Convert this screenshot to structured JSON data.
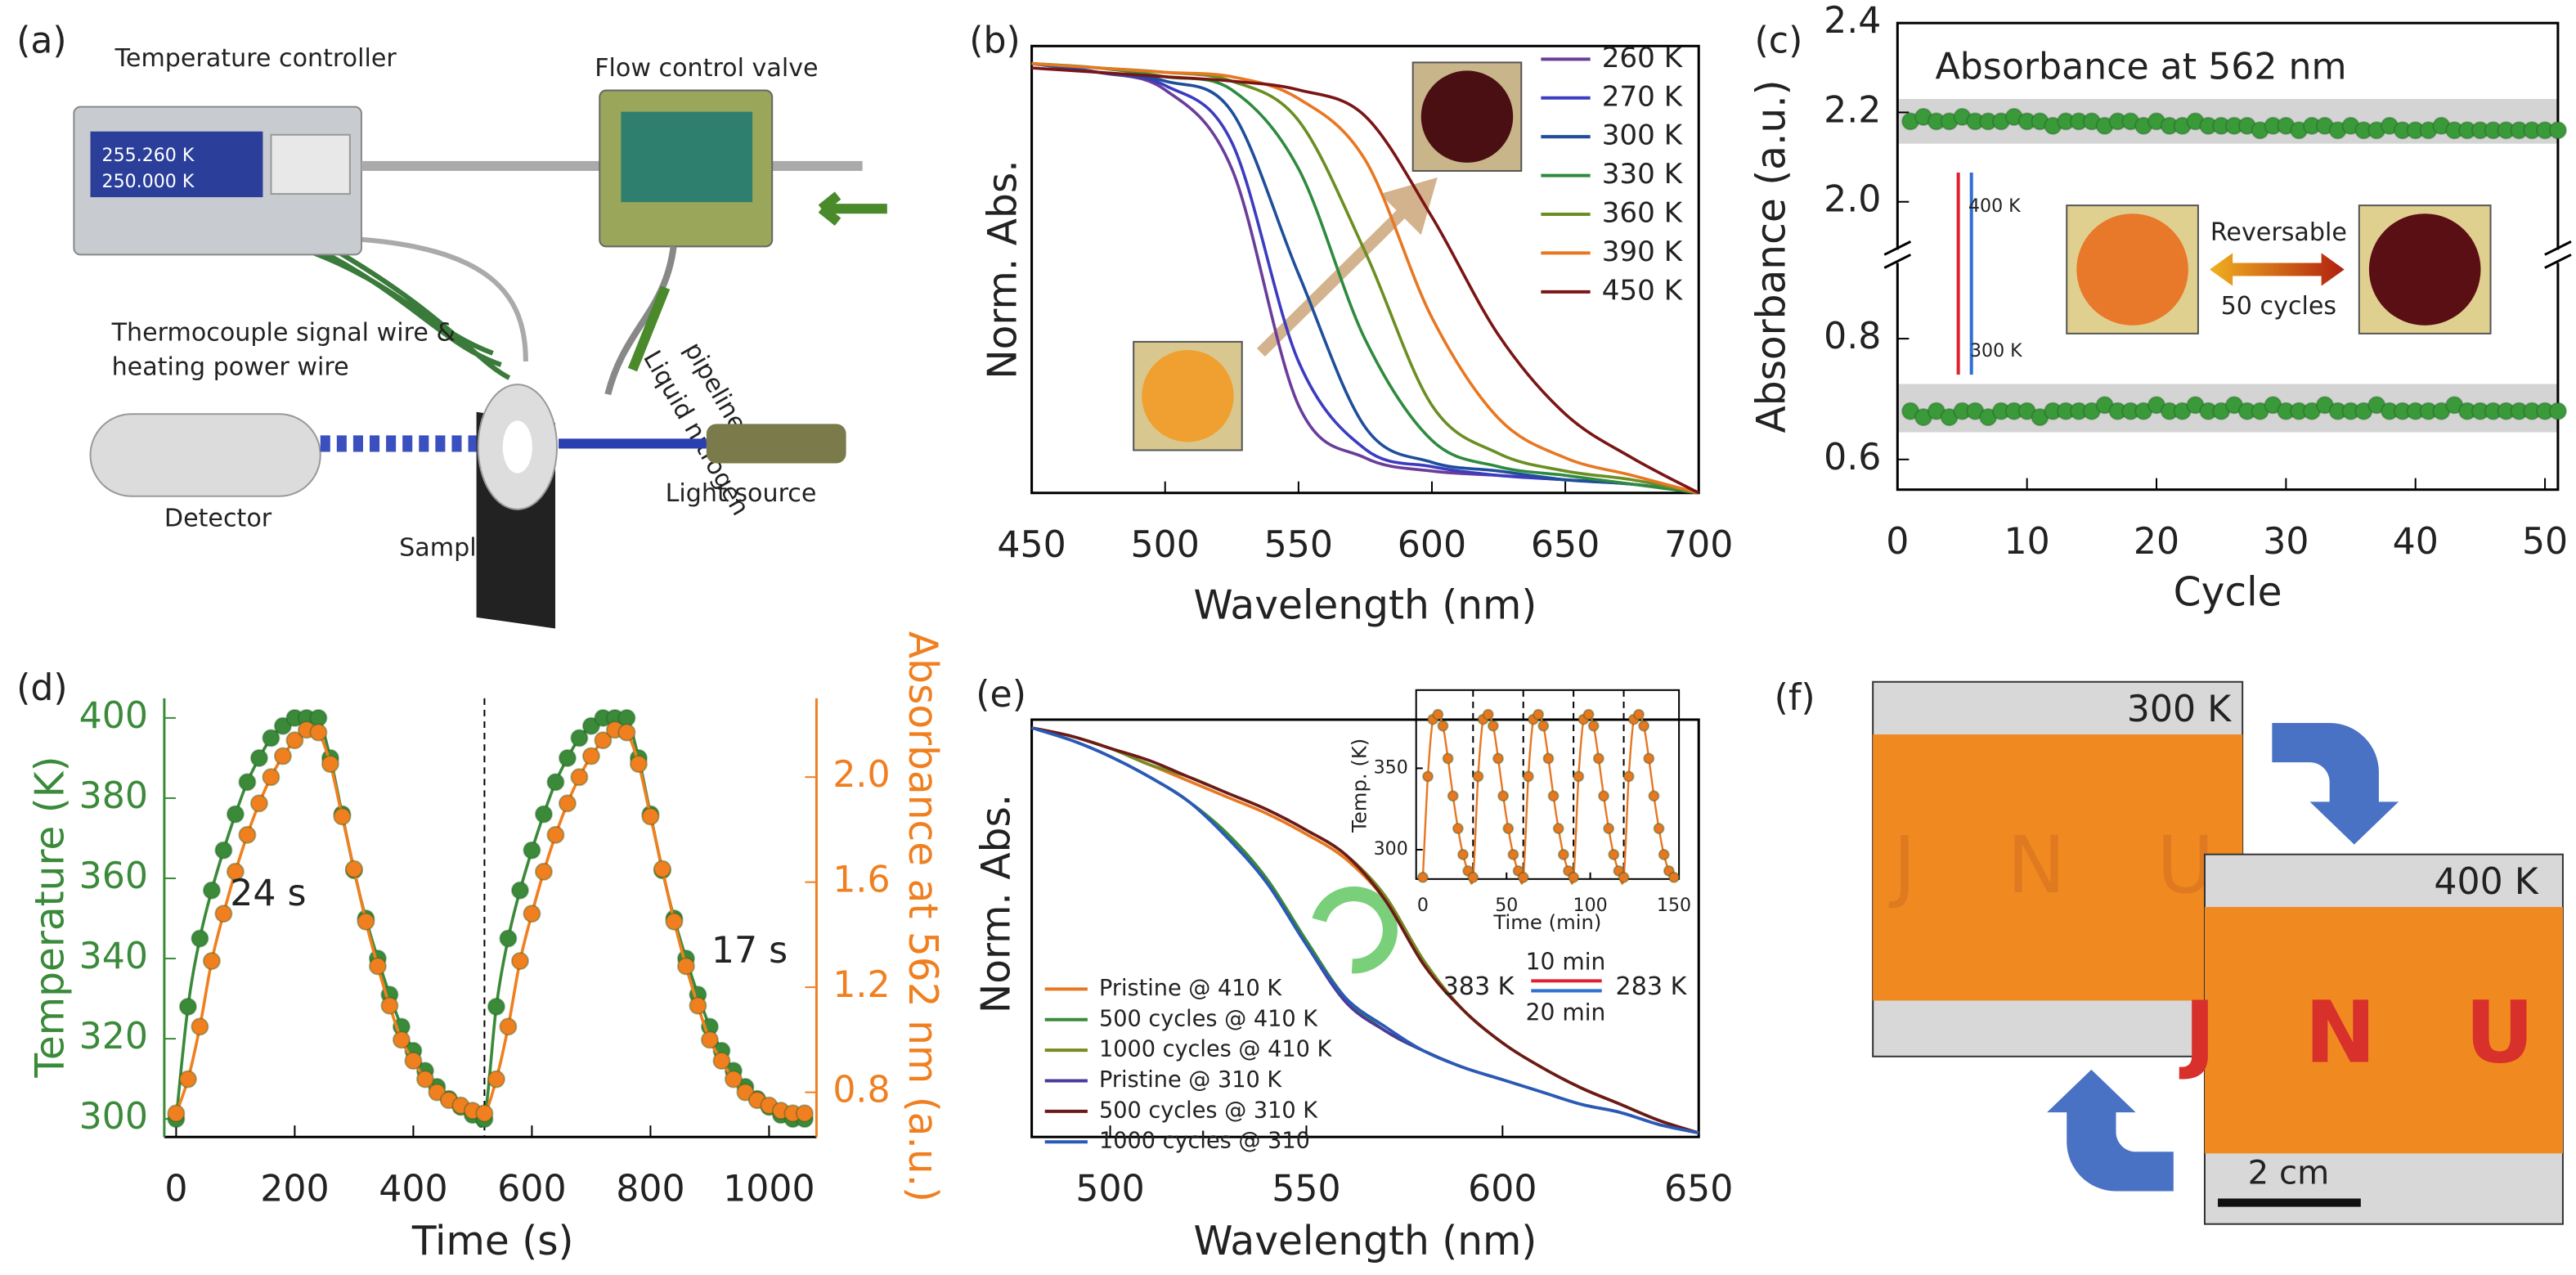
{
  "figure": {
    "panel_a": {
      "label": "(a)",
      "controller": "Temperature controller",
      "valve": "Flow control valve",
      "wire_1": "Thermocouple signal wire &",
      "wire_2": "heating power wire",
      "pipe_1": "Liquid nitrogen",
      "pipe_2": "pipeline",
      "detector": "Detector",
      "sample": "Sample",
      "light": "Light source",
      "readout_1": "255.260 K",
      "readout_2": "250.000 K"
    },
    "panel_f": {
      "label": "(f)",
      "photo_1": "300 K",
      "photo_2": "400 K",
      "scale": "2 cm",
      "letters": "J N U"
    }
  },
  "chart_data": [
    {
      "type": "line",
      "label": "(b)",
      "xlabel": "Wavelength (nm)",
      "ylabel": "Norm. Abs.",
      "xlim": [
        450,
        700
      ],
      "ylim": [
        0,
        1.02
      ],
      "xticks": [
        450,
        500,
        550,
        600,
        650,
        700
      ],
      "yticks": [],
      "frame": true,
      "x": [
        450,
        475,
        500,
        525,
        550,
        575,
        600,
        625,
        650,
        675,
        700
      ],
      "series": [
        {
          "name": "260 K",
          "color": "#6a3d9a",
          "values": [
            0.98,
            0.96,
            0.92,
            0.74,
            0.2,
            0.08,
            0.05,
            0.04,
            0.03,
            0.02,
            0
          ]
        },
        {
          "name": "270 K",
          "color": "#3c3cc0",
          "values": [
            0.98,
            0.96,
            0.93,
            0.8,
            0.3,
            0.1,
            0.06,
            0.04,
            0.03,
            0.02,
            0
          ]
        },
        {
          "name": "300 K",
          "color": "#1f4e9a",
          "values": [
            0.98,
            0.96,
            0.94,
            0.87,
            0.5,
            0.15,
            0.07,
            0.05,
            0.03,
            0.02,
            0
          ]
        },
        {
          "name": "330 K",
          "color": "#2e8b3e",
          "values": [
            0.98,
            0.97,
            0.95,
            0.92,
            0.74,
            0.35,
            0.12,
            0.06,
            0.04,
            0.02,
            0
          ]
        },
        {
          "name": "360 K",
          "color": "#6b8e23",
          "values": [
            0.98,
            0.97,
            0.96,
            0.94,
            0.85,
            0.55,
            0.2,
            0.09,
            0.05,
            0.03,
            0
          ]
        },
        {
          "name": "390 K",
          "color": "#e87722",
          "values": [
            0.98,
            0.97,
            0.96,
            0.95,
            0.9,
            0.76,
            0.4,
            0.17,
            0.08,
            0.04,
            0
          ]
        },
        {
          "name": "450 K",
          "color": "#7b1515",
          "values": [
            0.97,
            0.96,
            0.95,
            0.94,
            0.92,
            0.86,
            0.63,
            0.36,
            0.18,
            0.08,
            0
          ]
        }
      ]
    },
    {
      "type": "line",
      "label": "(c)",
      "xlabel": "Cycle",
      "ylabel": "Absorbance (a.u.)",
      "xlim": [
        0,
        51
      ],
      "ylim": [
        0.55,
        2.4
      ],
      "ybreak": [
        0.92,
        1.9
      ],
      "xticks": [
        0,
        10,
        20,
        30,
        40,
        50
      ],
      "yticks": [
        0.6,
        0.8,
        {
          "value": 2,
          "label": "2.0"
        },
        2.2,
        2.4
      ],
      "frame": true,
      "markers": true,
      "bands": [
        [
          2.13,
          2.23
        ],
        [
          0.645,
          0.725
        ]
      ],
      "annotations": [
        "Absorbance at 562 nm",
        "400 K",
        "300 K",
        "Reversable",
        "50 cycles"
      ],
      "x": [
        1,
        2,
        3,
        4,
        5,
        6,
        7,
        8,
        9,
        10,
        11,
        12,
        13,
        14,
        15,
        16,
        17,
        18,
        19,
        20,
        21,
        22,
        23,
        24,
        25,
        26,
        27,
        28,
        29,
        30,
        31,
        32,
        33,
        34,
        35,
        36,
        37,
        38,
        39,
        40,
        41,
        42,
        43,
        44,
        45,
        46,
        47,
        48,
        49,
        50,
        51
      ],
      "series": [
        {
          "color": "#3a9a3a",
          "values": [
            2.18,
            2.19,
            2.18,
            2.18,
            2.19,
            2.18,
            2.18,
            2.18,
            2.19,
            2.18,
            2.18,
            2.17,
            2.18,
            2.18,
            2.18,
            2.17,
            2.18,
            2.18,
            2.17,
            2.18,
            2.17,
            2.17,
            2.18,
            2.17,
            2.17,
            2.17,
            2.17,
            2.16,
            2.17,
            2.17,
            2.16,
            2.17,
            2.17,
            2.16,
            2.17,
            2.16,
            2.16,
            2.17,
            2.16,
            2.16,
            2.16,
            2.17,
            2.16,
            2.16,
            2.16,
            2.16,
            2.16,
            2.16,
            2.16,
            2.16,
            2.16
          ]
        },
        {
          "color": "#3a9a3a",
          "values": [
            0.68,
            0.67,
            0.68,
            0.67,
            0.68,
            0.68,
            0.67,
            0.68,
            0.68,
            0.68,
            0.67,
            0.68,
            0.68,
            0.68,
            0.68,
            0.69,
            0.68,
            0.68,
            0.68,
            0.69,
            0.68,
            0.68,
            0.69,
            0.68,
            0.68,
            0.69,
            0.68,
            0.68,
            0.69,
            0.68,
            0.68,
            0.68,
            0.69,
            0.68,
            0.68,
            0.68,
            0.69,
            0.68,
            0.68,
            0.68,
            0.68,
            0.68,
            0.69,
            0.68,
            0.68,
            0.68,
            0.68,
            0.68,
            0.68,
            0.68,
            0.68
          ]
        }
      ]
    },
    {
      "type": "line",
      "label": "(d)",
      "xlabel": "Time (s)",
      "ylabel": "Temperature (K)",
      "y2label": "Absorbance at 562 nm (a.u.)",
      "y_color": "#3a8a3a",
      "y2_color": "#f07f20",
      "xlim": [
        -20,
        1080
      ],
      "ylim": [
        295.5,
        404.9
      ],
      "y2lim": [
        0.63,
        2.3
      ],
      "xticks": [
        0,
        200,
        400,
        600,
        800,
        1000
      ],
      "yticks": [
        300,
        320,
        340,
        360,
        380,
        400
      ],
      "y2ticks": [
        0.8,
        1.2,
        1.6,
        {
          "value": 2,
          "label": "2.0"
        }
      ],
      "frame": false,
      "markers": true,
      "vlines": [
        520
      ],
      "annotations": [
        "24 s",
        "17 s"
      ],
      "x": [
        0,
        20,
        40,
        60,
        80,
        100,
        120,
        140,
        160,
        180,
        200,
        220,
        240,
        260,
        280,
        300,
        320,
        340,
        360,
        380,
        400,
        420,
        440,
        460,
        480,
        500,
        520,
        540,
        560,
        580,
        600,
        620,
        640,
        660,
        680,
        700,
        720,
        740,
        760,
        780,
        800,
        820,
        840,
        860,
        880,
        900,
        920,
        940,
        960,
        980,
        1000,
        1020,
        1040,
        1060
      ],
      "series": [
        {
          "color": "#3a8a3a",
          "values": [
            300,
            328,
            345,
            357,
            367,
            376,
            384,
            390,
            395,
            398,
            400,
            400,
            400,
            390,
            376,
            362,
            350,
            340,
            331,
            323,
            317,
            312,
            308,
            305,
            303,
            301,
            300,
            328,
            345,
            357,
            367,
            376,
            384,
            390,
            395,
            398,
            400,
            400,
            400,
            390,
            376,
            362,
            350,
            340,
            331,
            323,
            317,
            312,
            308,
            305,
            303,
            301,
            300,
            300
          ]
        },
        {
          "color": "#f07f20",
          "axis": "y2",
          "values": [
            0.72,
            0.85,
            1.05,
            1.3,
            1.48,
            1.64,
            1.78,
            1.9,
            2,
            2.08,
            2.14,
            2.18,
            2.17,
            2.05,
            1.85,
            1.65,
            1.45,
            1.28,
            1.13,
            1,
            0.92,
            0.85,
            0.8,
            0.77,
            0.75,
            0.73,
            0.72,
            0.85,
            1.05,
            1.3,
            1.48,
            1.64,
            1.78,
            1.9,
            2,
            2.08,
            2.14,
            2.18,
            2.17,
            2.05,
            1.85,
            1.65,
            1.45,
            1.28,
            1.13,
            1,
            0.92,
            0.85,
            0.8,
            0.77,
            0.75,
            0.73,
            0.72,
            0.72
          ]
        }
      ]
    },
    {
      "type": "line",
      "label": "(e)",
      "xlabel": "Wavelength (nm)",
      "ylabel": "Norm. Abs.",
      "xlim": [
        480,
        650
      ],
      "ylim": [
        0,
        1.02
      ],
      "xticks": [
        500,
        550,
        600,
        650
      ],
      "yticks": [],
      "frame": true,
      "annotations": [
        "10 min",
        "20 min",
        "383 K",
        "283 K"
      ],
      "x": [
        480,
        490,
        500,
        510,
        520,
        530,
        540,
        550,
        560,
        570,
        580,
        590,
        600,
        610,
        620,
        630,
        640,
        650
      ],
      "series": [
        {
          "name": "Pristine @ 410 K",
          "color": "#e87722",
          "values": [
            1,
            0.98,
            0.95,
            0.91,
            0.87,
            0.83,
            0.79,
            0.74,
            0.68,
            0.58,
            0.42,
            0.31,
            0.23,
            0.17,
            0.12,
            0.08,
            0.04,
            0.01
          ]
        },
        {
          "name": "500 cycles @ 410 K",
          "color": "#3a8a3a",
          "values": [
            1,
            0.97,
            0.93,
            0.88,
            0.82,
            0.74,
            0.63,
            0.48,
            0.34,
            0.26,
            0.21,
            0.17,
            0.14,
            0.11,
            0.08,
            0.06,
            0.03,
            0.01
          ]
        },
        {
          "name": "1000 cycles @ 410 K",
          "color": "#7a8a20",
          "values": [
            1,
            0.98,
            0.95,
            0.91,
            0.88,
            0.84,
            0.8,
            0.75,
            0.69,
            0.59,
            0.43,
            0.31,
            0.23,
            0.17,
            0.12,
            0.08,
            0.04,
            0.01
          ]
        },
        {
          "name": "Pristine @ 310 K",
          "color": "#4b3a9a",
          "values": [
            1,
            0.97,
            0.93,
            0.88,
            0.82,
            0.73,
            0.62,
            0.47,
            0.33,
            0.26,
            0.21,
            0.17,
            0.14,
            0.11,
            0.08,
            0.06,
            0.03,
            0.01
          ]
        },
        {
          "name": "500 cycles @ 310 K",
          "color": "#6b1a1a",
          "values": [
            1,
            0.98,
            0.95,
            0.92,
            0.88,
            0.84,
            0.8,
            0.75,
            0.69,
            0.58,
            0.42,
            0.31,
            0.23,
            0.17,
            0.12,
            0.08,
            0.04,
            0.01
          ]
        },
        {
          "name": "1000 cycles @ 310",
          "color": "#2a5ab8",
          "values": [
            1,
            0.97,
            0.93,
            0.88,
            0.82,
            0.73,
            0.62,
            0.47,
            0.34,
            0.27,
            0.21,
            0.17,
            0.14,
            0.11,
            0.08,
            0.06,
            0.03,
            0.01
          ]
        }
      ]
    },
    {
      "type": "line",
      "xlabel": "Time (min)",
      "ylabel": "Temp. (K)",
      "xlim": [
        -4,
        153
      ],
      "ylim": [
        282,
        398
      ],
      "xticks": [
        0,
        50,
        100,
        150
      ],
      "yticks": [
        300,
        350
      ],
      "frame": true,
      "markers": true,
      "vlines": [
        30,
        60,
        90,
        120
      ],
      "x": [
        0,
        3,
        6,
        9,
        12,
        15,
        18,
        21,
        24,
        27,
        30,
        33,
        36,
        39,
        42,
        45,
        48,
        51,
        54,
        57,
        60,
        63,
        66,
        69,
        72,
        75,
        78,
        81,
        84,
        87,
        90,
        93,
        96,
        99,
        102,
        105,
        108,
        111,
        114,
        117,
        120,
        123,
        126,
        129,
        132,
        135,
        138,
        141,
        144,
        147,
        150
      ],
      "series": [
        {
          "color": "#e87722",
          "values": [
            283,
            345,
            380,
            383,
            376,
            356,
            333,
            313,
            297,
            287,
            283,
            345,
            380,
            383,
            376,
            356,
            333,
            313,
            297,
            287,
            283,
            345,
            380,
            383,
            376,
            356,
            333,
            313,
            297,
            287,
            283,
            345,
            380,
            383,
            376,
            356,
            333,
            313,
            297,
            287,
            283,
            345,
            380,
            383,
            376,
            356,
            333,
            313,
            297,
            287,
            283
          ]
        }
      ]
    }
  ]
}
